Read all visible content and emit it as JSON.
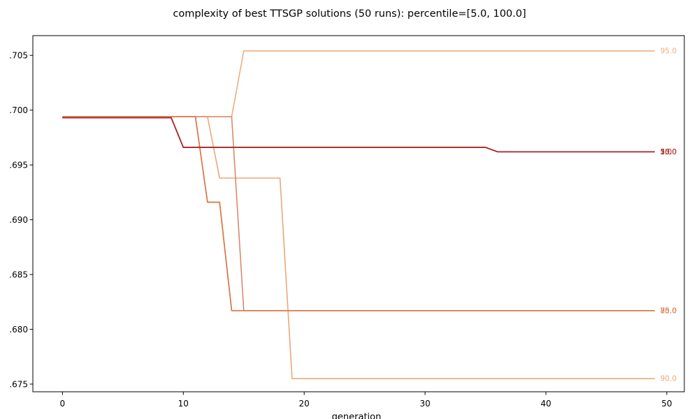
{
  "chart_data": {
    "type": "line",
    "title": "complexity of best TTSGP solutions (50 runs): percentile=[5.0, 100.0]",
    "xlabel": "generation",
    "ylabel": "",
    "xlim": [
      -2.45,
      51.45
    ],
    "ylim": [
      0.6743,
      0.7068
    ],
    "xticks": [
      0,
      10,
      20,
      30,
      40,
      50
    ],
    "yticks": [
      0.675,
      0.68,
      0.685,
      0.69,
      0.695,
      0.7,
      0.705
    ],
    "ytick_labels": [
      ".675",
      ".680",
      ".685",
      ".690",
      ".695",
      ".700",
      ".705"
    ],
    "grid": false,
    "legend": "none",
    "series": [
      {
        "end_label": "95.0",
        "color": "#eeae7a",
        "points": [
          [
            0,
            0.6994
          ],
          [
            14,
            0.6994
          ],
          [
            15,
            0.7054
          ],
          [
            49,
            0.7054
          ]
        ]
      },
      {
        "end_label": "90.0",
        "color": "#eca877",
        "points": [
          [
            0,
            0.6994
          ],
          [
            12,
            0.6994
          ],
          [
            13,
            0.6938
          ],
          [
            18,
            0.6938
          ],
          [
            19,
            0.6755
          ],
          [
            49,
            0.6755
          ]
        ]
      },
      {
        "end_label": "85.0",
        "color": "#d98a6a",
        "points": [
          [
            0,
            0.6994
          ],
          [
            14,
            0.6994
          ],
          [
            15,
            0.6817
          ],
          [
            49,
            0.6817
          ]
        ]
      },
      {
        "end_label": "80.0",
        "color": "#e08a55",
        "points": [
          [
            0,
            0.6994
          ],
          [
            11,
            0.6994
          ],
          [
            12,
            0.6916
          ],
          [
            13,
            0.6916
          ],
          [
            14,
            0.6817
          ],
          [
            49,
            0.6817
          ]
        ]
      },
      {
        "end_label": "75.0",
        "color": "#d9764a",
        "points": [
          [
            0,
            0.6994
          ],
          [
            11,
            0.6994
          ],
          [
            12,
            0.6916
          ],
          [
            13,
            0.6916
          ],
          [
            14,
            0.6817
          ],
          [
            49,
            0.6817
          ]
        ]
      },
      {
        "end_label": "50.0",
        "color": "#c85a40",
        "points": [
          [
            0,
            0.6993
          ],
          [
            9,
            0.6993
          ],
          [
            10,
            0.6966
          ],
          [
            35,
            0.6966
          ],
          [
            36,
            0.6962
          ],
          [
            49,
            0.6962
          ]
        ]
      },
      {
        "end_label": "25.0",
        "color": "#bb4538",
        "points": [
          [
            0,
            0.6993
          ],
          [
            9,
            0.6993
          ],
          [
            10,
            0.6966
          ],
          [
            35,
            0.6966
          ],
          [
            36,
            0.6962
          ],
          [
            49,
            0.6962
          ]
        ]
      },
      {
        "end_label": "10.0",
        "color": "#b03530",
        "points": [
          [
            0,
            0.6993
          ],
          [
            9,
            0.6993
          ],
          [
            10,
            0.6966
          ],
          [
            35,
            0.6966
          ],
          [
            36,
            0.6962
          ],
          [
            49,
            0.6962
          ]
        ]
      },
      {
        "end_label": "5.0",
        "color": "#a82a2a",
        "points": [
          [
            0,
            0.6993
          ],
          [
            9,
            0.6993
          ],
          [
            10,
            0.6966
          ],
          [
            35,
            0.6966
          ],
          [
            36,
            0.6962
          ],
          [
            49,
            0.6962
          ]
        ]
      }
    ]
  }
}
